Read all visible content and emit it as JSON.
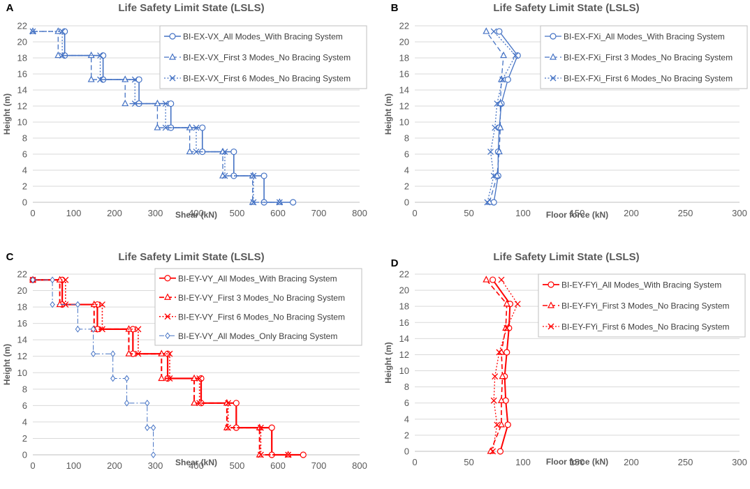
{
  "chart_data": [
    {
      "panel": "A",
      "type": "line",
      "title": "Life Safety Limit State (LSLS)",
      "xlabel": "Shear (kN)",
      "ylabel": "Height (m)",
      "xlim": [
        0,
        800
      ],
      "ylim": [
        0,
        22
      ],
      "xticks": [
        "0",
        "100",
        "200",
        "300",
        "400",
        "500",
        "600",
        "700",
        "800"
      ],
      "yticks": [
        "0",
        "2",
        "4",
        "6",
        "8",
        "10",
        "12",
        "14",
        "16",
        "18",
        "20",
        "22"
      ],
      "series": [
        {
          "name": "BI-EX-VX_All Modes_With Bracing System",
          "color": "#4472c4",
          "dash": "solid",
          "marker": "circle",
          "width": 1.6,
          "x": [
            78,
            78,
            172,
            172,
            260,
            260,
            338,
            338,
            415,
            415,
            492,
            492,
            566,
            566,
            637
          ],
          "y": [
            21.3,
            18.3,
            18.3,
            15.3,
            15.3,
            12.3,
            12.3,
            9.3,
            9.3,
            6.3,
            6.3,
            3.3,
            3.3,
            0,
            0
          ]
        },
        {
          "name": "BI-EX-VX_First 3 Modes_No Bracing System",
          "color": "#4472c4",
          "dash": "dashed",
          "marker": "triangle",
          "width": 1.3,
          "x": [
            0,
            62,
            62,
            143,
            143,
            226,
            226,
            305,
            305,
            384,
            384,
            465,
            465,
            538,
            538,
            604
          ],
          "y": [
            21.3,
            21.3,
            18.3,
            18.3,
            15.3,
            15.3,
            12.3,
            12.3,
            9.3,
            9.3,
            6.3,
            6.3,
            3.3,
            3.3,
            0,
            0
          ]
        },
        {
          "name": "BI-EX-VX_First 6 Modes_No Bracing System",
          "color": "#4472c4",
          "dash": "dotted",
          "marker": "x",
          "width": 1.3,
          "x": [
            0,
            72,
            72,
            165,
            165,
            250,
            250,
            325,
            325,
            400,
            400,
            470,
            470,
            540,
            540,
            604
          ],
          "y": [
            21.3,
            21.3,
            18.3,
            18.3,
            15.3,
            15.3,
            12.3,
            12.3,
            9.3,
            9.3,
            6.3,
            6.3,
            3.3,
            3.3,
            0,
            0
          ]
        }
      ],
      "legend": "top-right"
    },
    {
      "panel": "B",
      "type": "line",
      "title": "Life Safety Limit State (LSLS)",
      "xlabel": "Floor force (kN)",
      "ylabel": "Height (m)",
      "xlim": [
        0,
        300
      ],
      "ylim": [
        0,
        22
      ],
      "xticks": [
        "0",
        "50",
        "100",
        "150",
        "200",
        "250",
        "300"
      ],
      "yticks": [
        "0",
        "2",
        "4",
        "6",
        "8",
        "10",
        "12",
        "14",
        "16",
        "18",
        "20",
        "22"
      ],
      "series": [
        {
          "name": "BI-EX-FXi_All Modes_With Bracing System",
          "color": "#4472c4",
          "dash": "solid",
          "marker": "circle",
          "width": 1.3,
          "x": [
            73,
            77,
            77,
            78,
            80,
            86,
            95,
            78
          ],
          "y": [
            0,
            3.3,
            6.3,
            9.3,
            12.3,
            15.3,
            18.3,
            21.3
          ]
        },
        {
          "name": "BI-EX-FXi_First 3 Modes_No Bracing System",
          "color": "#4472c4",
          "dash": "dashed",
          "marker": "triangle",
          "width": 1.3,
          "x": [
            69,
            76,
            78,
            79,
            79,
            80,
            82,
            66
          ],
          "y": [
            0,
            3.3,
            6.3,
            9.3,
            12.3,
            15.3,
            18.3,
            21.3
          ]
        },
        {
          "name": "BI-EX-FXi_First 6 Modes_No Bracing System",
          "color": "#4472c4",
          "dash": "dotted",
          "marker": "x",
          "width": 1.3,
          "x": [
            67,
            73,
            70,
            74,
            76,
            81,
            93,
            73
          ],
          "y": [
            0,
            3.3,
            6.3,
            9.3,
            12.3,
            15.3,
            18.3,
            21.3
          ]
        }
      ],
      "legend": "top-right"
    },
    {
      "panel": "C",
      "type": "line",
      "title": "Life Safety Limit State (LSLS)",
      "xlabel": "Shear (kN)",
      "ylabel": "Height (m)",
      "xlim": [
        0,
        800
      ],
      "ylim": [
        0,
        22
      ],
      "xticks": [
        "0",
        "100",
        "200",
        "300",
        "400",
        "500",
        "600",
        "700",
        "800"
      ],
      "yticks": [
        "0",
        "2",
        "4",
        "6",
        "8",
        "10",
        "12",
        "14",
        "16",
        "18",
        "20",
        "22"
      ],
      "series": [
        {
          "name": "BI-EY-VY_All Modes_With Bracing System",
          "color": "#ff0000",
          "dash": "solid",
          "marker": "circle",
          "width": 2.2,
          "x": [
            0,
            72,
            72,
            158,
            158,
            245,
            245,
            330,
            330,
            412,
            412,
            498,
            498,
            585,
            585,
            662
          ],
          "y": [
            21.3,
            21.3,
            18.3,
            18.3,
            15.3,
            15.3,
            12.3,
            12.3,
            9.3,
            9.3,
            6.3,
            6.3,
            3.3,
            3.3,
            0,
            0
          ]
        },
        {
          "name": "BI-EY-VY_First 3 Modes_No Bracing System",
          "color": "#ff0000",
          "dash": "dashed",
          "marker": "triangle",
          "width": 2,
          "x": [
            0,
            66,
            66,
            150,
            150,
            235,
            235,
            315,
            315,
            395,
            395,
            475,
            475,
            555,
            555,
            625
          ],
          "y": [
            21.3,
            21.3,
            18.3,
            18.3,
            15.3,
            15.3,
            12.3,
            12.3,
            9.3,
            9.3,
            6.3,
            6.3,
            3.3,
            3.3,
            0,
            0
          ]
        },
        {
          "name": "BI-EY-VY_First 6 Modes_No Bracing System",
          "color": "#ff0000",
          "dash": "dotted",
          "marker": "x",
          "width": 1.6,
          "x": [
            0,
            80,
            80,
            170,
            170,
            258,
            258,
            335,
            335,
            408,
            408,
            478,
            478,
            558,
            558,
            625
          ],
          "y": [
            21.3,
            21.3,
            18.3,
            18.3,
            15.3,
            15.3,
            12.3,
            12.3,
            9.3,
            9.3,
            6.3,
            6.3,
            3.3,
            3.3,
            0,
            0
          ]
        },
        {
          "name": "BI-EY-VY_All Modes_Only Bracing System",
          "color": "#4472c4",
          "dash": "dashdot",
          "marker": "diamond",
          "width": 1,
          "x": [
            0,
            48,
            48,
            110,
            110,
            148,
            148,
            196,
            196,
            230,
            230,
            280,
            280,
            295,
            295
          ],
          "y": [
            21.3,
            21.3,
            18.3,
            18.3,
            15.3,
            15.3,
            12.3,
            12.3,
            9.3,
            9.3,
            6.3,
            6.3,
            3.3,
            3.3,
            0
          ]
        }
      ],
      "legend": "top-right"
    },
    {
      "panel": "D",
      "type": "line",
      "title": "Life Safety Limit State (LSLS)",
      "xlabel": "Floor force (kN)",
      "ylabel": "Height (m)",
      "xlim": [
        0,
        300
      ],
      "ylim": [
        0,
        22
      ],
      "xticks": [
        "0",
        "50",
        "100",
        "150",
        "200",
        "250",
        "300"
      ],
      "yticks": [
        "0",
        "2",
        "4",
        "6",
        "8",
        "10",
        "12",
        "14",
        "16",
        "18",
        "20",
        "22"
      ],
      "series": [
        {
          "name": "BI-EY-FYi_All Modes_With Bracing System",
          "color": "#ff0000",
          "dash": "solid",
          "marker": "circle",
          "width": 2,
          "x": [
            79,
            86,
            84,
            83,
            85,
            87,
            88,
            72
          ],
          "y": [
            0,
            3.3,
            6.3,
            9.3,
            12.3,
            15.3,
            18.3,
            21.3
          ]
        },
        {
          "name": "BI-EY-FYi_First 3 Modes_No Bracing System",
          "color": "#ff0000",
          "dash": "dashed",
          "marker": "triangle",
          "width": 1.6,
          "x": [
            70,
            80,
            80,
            81,
            80,
            84,
            85,
            66
          ],
          "y": [
            0,
            3.3,
            6.3,
            9.3,
            12.3,
            15.3,
            18.3,
            21.3
          ]
        },
        {
          "name": "BI-EY-FYi_First 6 Modes_No Bracing System",
          "color": "#ff0000",
          "dash": "dotted",
          "marker": "x",
          "width": 1.3,
          "x": [
            72,
            76,
            73,
            74,
            78,
            85,
            95,
            80
          ],
          "y": [
            0,
            3.3,
            6.3,
            9.3,
            12.3,
            15.3,
            18.3,
            21.3
          ]
        }
      ],
      "legend": "top-right"
    }
  ]
}
